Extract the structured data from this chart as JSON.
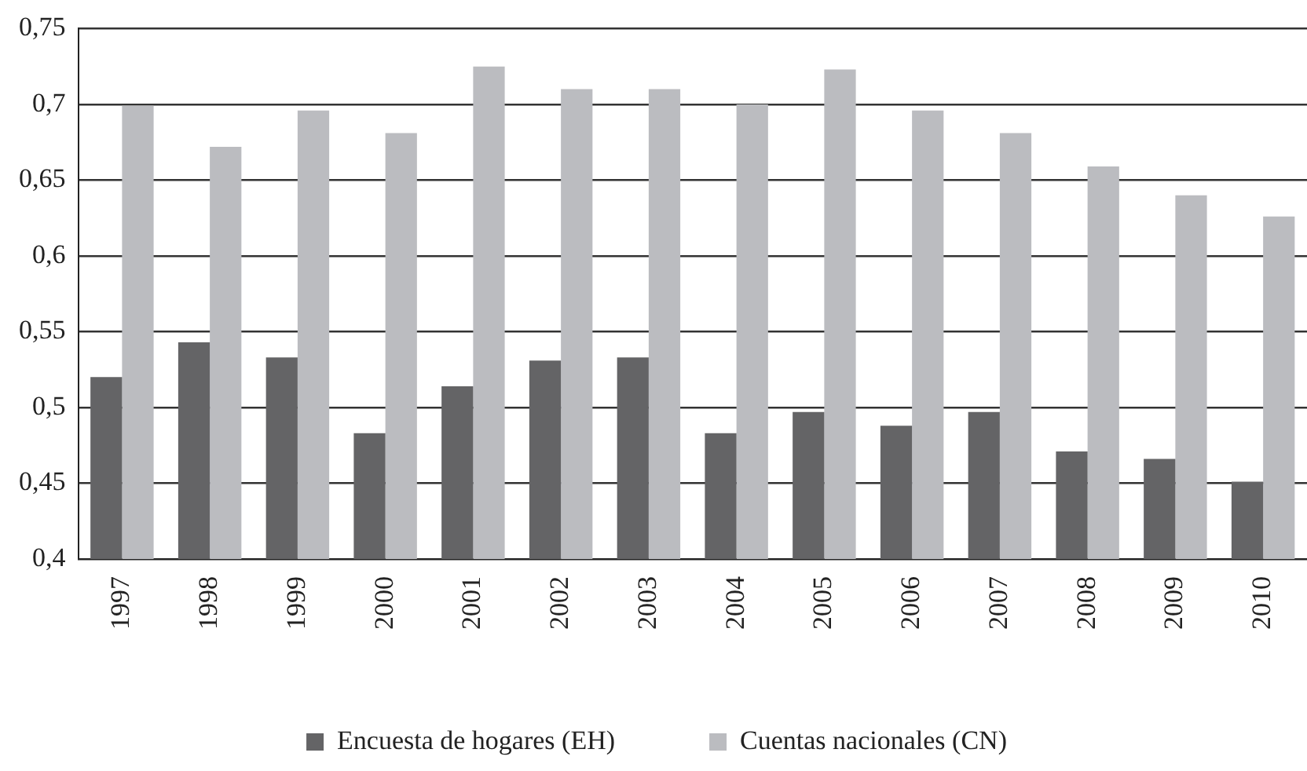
{
  "chart_data": {
    "type": "bar",
    "categories": [
      "1997",
      "1998",
      "1999",
      "2000",
      "2001",
      "2002",
      "2003",
      "2004",
      "2005",
      "2006",
      "2007",
      "2008",
      "2009",
      "2010"
    ],
    "series": [
      {
        "name": "Encuesta de hogares (EH)",
        "color": "#646466",
        "values": [
          0.52,
          0.543,
          0.533,
          0.483,
          0.514,
          0.531,
          0.533,
          0.483,
          0.497,
          0.488,
          0.497,
          0.471,
          0.466,
          0.451
        ]
      },
      {
        "name": "Cuentas nacionales (CN)",
        "color": "#bbbcc0",
        "values": [
          0.699,
          0.672,
          0.696,
          0.681,
          0.725,
          0.71,
          0.71,
          0.7,
          0.723,
          0.696,
          0.681,
          0.659,
          0.64,
          0.626
        ]
      }
    ],
    "ylim": [
      0.4,
      0.75
    ],
    "yticks": [
      {
        "value": 0.4,
        "label": "0,4"
      },
      {
        "value": 0.45,
        "label": "0,45"
      },
      {
        "value": 0.5,
        "label": "0,5"
      },
      {
        "value": 0.55,
        "label": "0,55"
      },
      {
        "value": 0.6,
        "label": "0,6"
      },
      {
        "value": 0.65,
        "label": "0,65"
      },
      {
        "value": 0.7,
        "label": "0,7"
      },
      {
        "value": 0.75,
        "label": "0,75"
      }
    ],
    "grid": "y",
    "legend": "bottom"
  }
}
